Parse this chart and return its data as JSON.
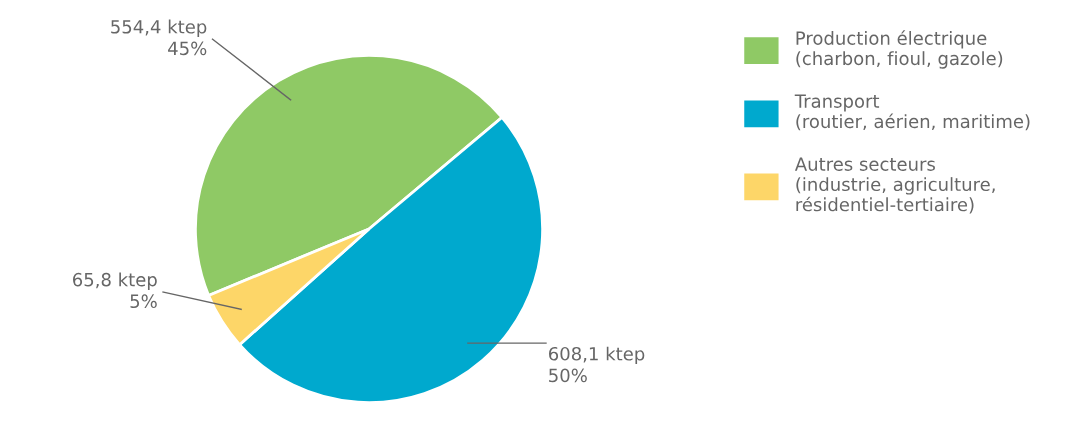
{
  "chart_data": {
    "type": "pie",
    "categories": [
      "Production électrique\n(charbon, fioul, gazole)",
      "Transport\n(routier, aérien, maritime)",
      "Autres secteurs\n(industrie, agriculture,\nrésidentiel-tertiaire)"
    ],
    "values": [
      554.4,
      608.1,
      65.8
    ],
    "colors": [
      "#8fc965",
      "#00a9ce",
      "#fdd668"
    ],
    "value_labels": [
      "554,4 ktep\n45%",
      "608,1 ktep\n50%",
      "65,8 ktep\n5%"
    ],
    "legend": "right"
  }
}
